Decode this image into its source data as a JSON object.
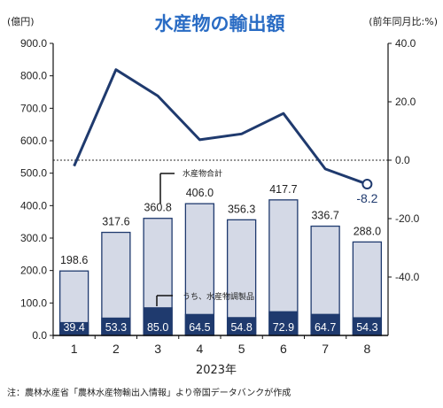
{
  "chart_data": {
    "type": "bar",
    "title": "水産物の輸出額",
    "left_unit": "(億円)",
    "right_unit": "(前年同月比:%)",
    "xlabel": "2023年",
    "categories": [
      "1",
      "2",
      "3",
      "4",
      "5",
      "6",
      "7",
      "8"
    ],
    "total_labels": [
      "198.6",
      "317.6",
      "360.8",
      "406.0",
      "356.3",
      "417.7",
      "336.7",
      "288.0"
    ],
    "sub_labels": [
      "39.4",
      "53.3",
      "85.0",
      "64.5",
      "54.8",
      "72.9",
      "64.7",
      "54.3"
    ],
    "series": [
      {
        "name": "水産物合計",
        "values": [
          198.6,
          317.6,
          360.8,
          406.0,
          356.3,
          417.7,
          336.7,
          288.0
        ]
      },
      {
        "name": "うち、水産物調製品",
        "values": [
          39.4,
          53.3,
          85.0,
          64.5,
          54.8,
          72.9,
          64.7,
          54.3
        ]
      },
      {
        "name": "",
        "axis": "right",
        "type": "line",
        "values": [
          -2.0,
          31.0,
          22.0,
          7.0,
          9.0,
          16.0,
          -3.0,
          -8.2
        ]
      }
    ],
    "line_end_label": "-8.2",
    "ylim_left": [
      0,
      900
    ],
    "ylim_right": [
      -60,
      40
    ],
    "left_ticks": [
      "0.0",
      "100.0",
      "200.0",
      "300.0",
      "400.0",
      "500.0",
      "600.0",
      "700.0",
      "800.0",
      "900.0"
    ],
    "right_ticks": [
      "40.0",
      "20.0",
      "0.0",
      "-20.0",
      "-40.0"
    ],
    "right_tick_values": [
      40,
      20,
      0,
      -20,
      -40
    ],
    "colors": {
      "total": "#d4d9e6",
      "sub": "#1f3a6e",
      "line": "#1f3a6e",
      "border": "#1f3a6e",
      "title": "#2a6cc4"
    },
    "note": "注：農林水産省「農林水産物輸出入情報」より帝国データバンクが作成"
  }
}
